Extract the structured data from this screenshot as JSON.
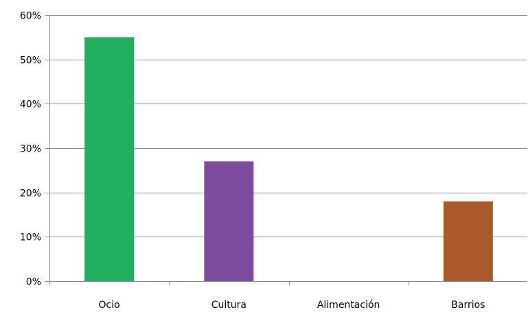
{
  "chart_data": {
    "type": "bar",
    "categories": [
      "Ocio",
      "Cultura",
      "Alimentación",
      "Barrios"
    ],
    "values": [
      55,
      27,
      0,
      18
    ],
    "colors": [
      "#22b060",
      "#7d4c9e",
      "#4f81bd",
      "#a9592a"
    ],
    "ylim": [
      0,
      60
    ],
    "ytick_values": [
      0,
      10,
      20,
      30,
      40,
      50,
      60
    ],
    "ytick_labels": [
      "0%",
      "10%",
      "20%",
      "30%",
      "40%",
      "50%",
      "60%"
    ],
    "grid": true,
    "legend": "none",
    "xlabel": "",
    "ylabel": "",
    "title": ""
  }
}
